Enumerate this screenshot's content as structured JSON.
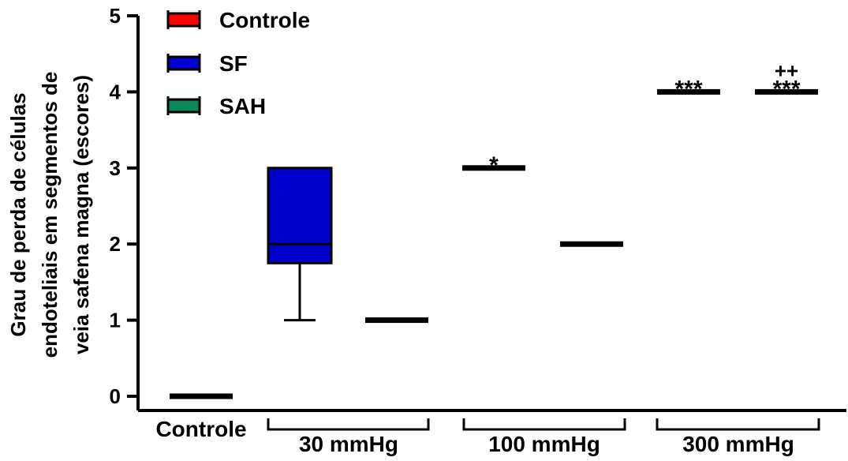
{
  "chart_data": {
    "type": "box",
    "ylabel_lines": [
      "Grau de perda de células",
      "endoteliais em segmentos de",
      "veia safena magna (escores)"
    ],
    "ylim": [
      0,
      5
    ],
    "yticks": [
      "0",
      "1",
      "2",
      "3",
      "4",
      "5"
    ],
    "legend": {
      "placement": "top-left",
      "items": [
        {
          "label": "Controle",
          "color": "#ff0000"
        },
        {
          "label": "SF",
          "color": "#0000cc"
        },
        {
          "label": "SAH",
          "color": "#0a8a5a"
        }
      ]
    },
    "groups": [
      {
        "label": "Controle",
        "bracket": false
      },
      {
        "label": "30 mmHg",
        "bracket": true
      },
      {
        "label": "100 mmHg",
        "bracket": true
      },
      {
        "label": "300 mmHg",
        "bracket": true
      }
    ],
    "boxes": [
      {
        "group": 0,
        "series": "Controle",
        "min": 0,
        "q1": 0,
        "median": 0,
        "q3": 0,
        "max": 0,
        "annotation": []
      },
      {
        "group": 1,
        "series": "SF",
        "min": 1,
        "q1": 1.75,
        "median": 2,
        "q3": 3,
        "max": 3,
        "annotation": []
      },
      {
        "group": 1,
        "series": "SAH",
        "min": 1,
        "q1": 1,
        "median": 1,
        "q3": 1,
        "max": 1,
        "annotation": []
      },
      {
        "group": 2,
        "series": "SF",
        "min": 3,
        "q1": 3,
        "median": 3,
        "q3": 3,
        "max": 3,
        "annotation": [
          "*"
        ]
      },
      {
        "group": 2,
        "series": "SAH",
        "min": 2,
        "q1": 2,
        "median": 2,
        "q3": 2,
        "max": 2,
        "annotation": []
      },
      {
        "group": 3,
        "series": "SF",
        "min": 4,
        "q1": 4,
        "median": 4,
        "q3": 4,
        "max": 4,
        "annotation": [
          "***"
        ]
      },
      {
        "group": 3,
        "series": "SAH",
        "min": 4,
        "q1": 4,
        "median": 4,
        "q3": 4,
        "max": 4,
        "annotation": [
          "++",
          "***"
        ]
      }
    ]
  }
}
